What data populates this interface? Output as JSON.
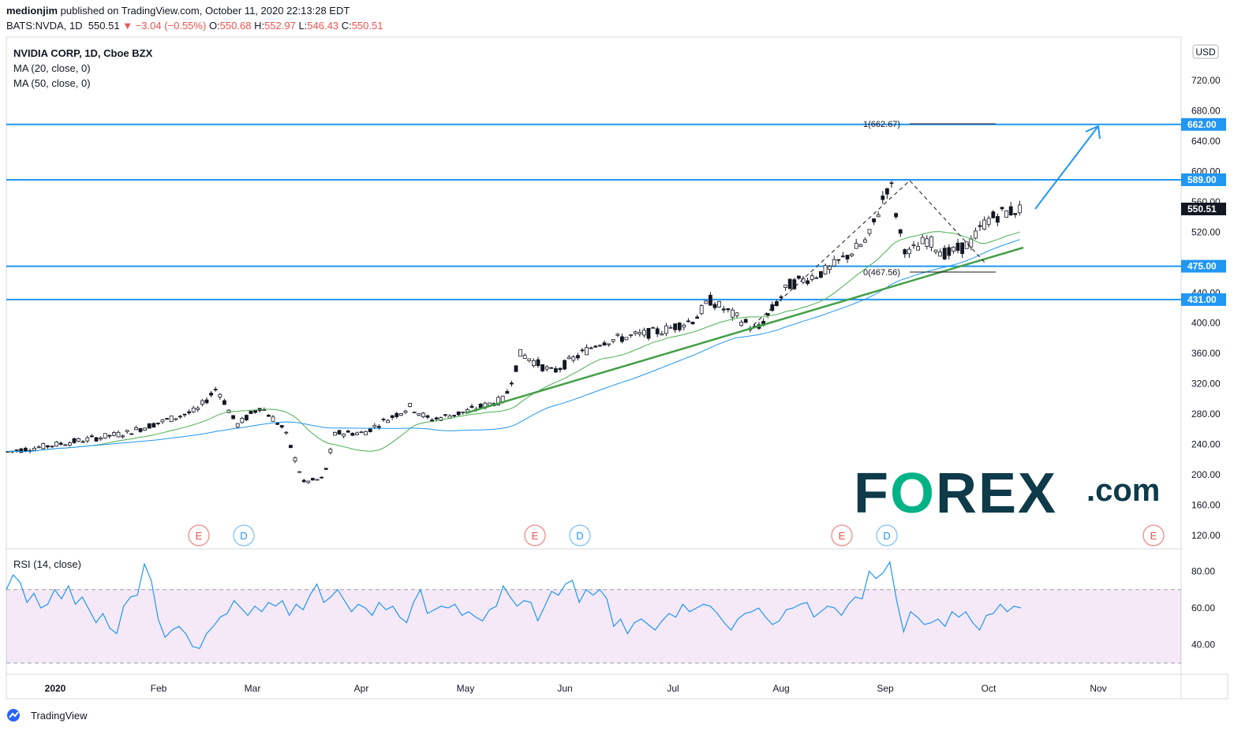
{
  "header": {
    "publisher": "medionjim",
    "published_text": "published on TradingView.com, October 11, 2020 22:13:28 EDT",
    "symbol": "BATS:NVDA, 1D",
    "last": "550.51",
    "change": "−3.04 (−0.55%)",
    "open_label": "O:",
    "open": "550.68",
    "high_label": "H:",
    "high": "552.97",
    "low_label": "L:",
    "low": "546.43",
    "close_label": "C:",
    "close": "550.51"
  },
  "legend": {
    "title": "NVIDIA CORP, 1D, Cboe BZX",
    "ma20": "MA (20, close, 0)",
    "ma50": "MA (50, close, 0)",
    "rsi": "RSI (14, close)"
  },
  "currency_badge": "USD",
  "brand": {
    "tradingview": "TradingView",
    "forex_text": "F",
    "forex_o": "O",
    "forex_rest": "REX",
    "forex_domain": ".com"
  },
  "colors": {
    "level": "#2196f3",
    "ma20": "#4caf50",
    "ma50": "#2196f3",
    "trend": "#43a047",
    "rsi_band": "#9c27b0",
    "forex_green": "#00b386",
    "forex_navy": "#0e3a4a"
  },
  "chart_data": {
    "type": "candlestick",
    "price_axis": {
      "ticks": [
        "120.00",
        "160.00",
        "200.00",
        "240.00",
        "280.00",
        "320.00",
        "360.00",
        "400.00",
        "440.00",
        "520.00",
        "560.00",
        "600.00",
        "640.00",
        "680.00",
        "720.00"
      ],
      "scale": "linear"
    },
    "time_axis": {
      "ticks": [
        "2020",
        "Feb",
        "Mar",
        "Apr",
        "May",
        "Jun",
        "Jul",
        "Aug",
        "Sep",
        "Oct",
        "Nov"
      ]
    },
    "horizontal_levels": [
      {
        "label": "662.00",
        "value": 662
      },
      {
        "label": "589.00",
        "value": 589
      },
      {
        "label": "475.00",
        "value": 475
      },
      {
        "label": "431.00",
        "value": 431
      }
    ],
    "last_price_label": "550.51",
    "fib_labels": {
      "top": "1(662.67)",
      "bottom": "0(467.56)"
    },
    "event_markers": [
      {
        "text": "E",
        "kind": "earnings"
      },
      {
        "text": "D",
        "kind": "dividend"
      },
      {
        "text": "E",
        "kind": "earnings"
      },
      {
        "text": "D",
        "kind": "dividend"
      },
      {
        "text": "E",
        "kind": "earnings"
      },
      {
        "text": "D",
        "kind": "dividend"
      },
      {
        "text": "E",
        "kind": "earnings"
      }
    ],
    "rsi": {
      "ticks": [
        "80.00",
        "60.00",
        "40.00"
      ],
      "overbought": 70,
      "oversold": 30,
      "values": [
        70,
        78,
        74,
        63,
        68,
        60,
        62,
        70,
        65,
        72,
        62,
        66,
        59,
        52,
        57,
        49,
        46,
        61,
        66,
        67,
        84,
        75,
        54,
        44,
        48,
        50,
        46,
        39,
        38,
        46,
        50,
        55,
        57,
        64,
        60,
        56,
        61,
        58,
        63,
        61,
        64,
        56,
        62,
        59,
        67,
        73,
        63,
        66,
        70,
        64,
        58,
        62,
        60,
        56,
        63,
        59,
        61,
        55,
        52,
        63,
        70,
        57,
        59,
        61,
        60,
        62,
        56,
        58,
        55,
        53,
        59,
        61,
        72,
        66,
        61,
        64,
        63,
        53,
        61,
        69,
        67,
        73,
        75,
        63,
        70,
        67,
        70,
        65,
        50,
        54,
        46,
        52,
        54,
        51,
        48,
        53,
        57,
        55,
        62,
        58,
        60,
        62,
        61,
        57,
        52,
        48,
        54,
        57,
        58,
        60,
        55,
        51,
        53,
        59,
        60,
        62,
        63,
        55,
        58,
        61,
        60,
        56,
        62,
        66,
        65,
        80,
        76,
        79,
        85,
        64,
        47,
        58,
        55,
        51,
        52,
        54,
        50,
        58,
        55,
        58,
        52,
        48,
        56,
        57,
        62,
        58,
        61,
        60
      ]
    },
    "ohlc_approx": "daily NVDA candles Jan-Oct 2020, roughly 230 -> 590 -> 550"
  }
}
